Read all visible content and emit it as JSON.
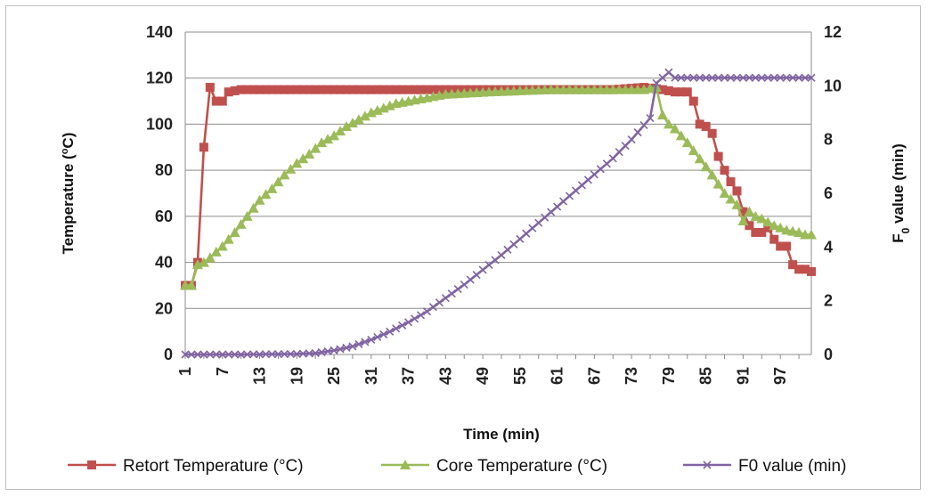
{
  "chart_data": {
    "type": "line",
    "xlabel": "Time (min)",
    "ylabel": "Temperature (ºC)",
    "y2label": "F0 value (min)",
    "x_ticks": [
      "1",
      "7",
      "13",
      "19",
      "25",
      "31",
      "37",
      "43",
      "49",
      "55",
      "61",
      "67",
      "73",
      "79",
      "85",
      "91",
      "97"
    ],
    "xlim": [
      1,
      102
    ],
    "ylim": [
      0,
      140
    ],
    "y_ticks": [
      "0",
      "20",
      "40",
      "60",
      "80",
      "100",
      "120",
      "140"
    ],
    "y2lim": [
      0,
      12
    ],
    "y2_ticks": [
      "0",
      "2",
      "4",
      "6",
      "8",
      "10",
      "12"
    ],
    "grid": true,
    "legend_position": "bottom",
    "series": [
      {
        "name": "Retort Temperature (°C)",
        "axis": "left",
        "color": "#C0504D",
        "marker": "square",
        "points": [
          [
            1,
            30
          ],
          [
            2,
            30
          ],
          [
            3,
            40
          ],
          [
            4,
            90
          ],
          [
            5,
            116
          ],
          [
            6,
            110
          ],
          [
            7,
            110
          ],
          [
            8,
            114
          ],
          [
            10,
            115
          ],
          [
            12,
            115
          ],
          [
            14,
            115
          ],
          [
            20,
            115
          ],
          [
            30,
            115
          ],
          [
            40,
            115
          ],
          [
            50,
            115
          ],
          [
            60,
            115
          ],
          [
            70,
            115
          ],
          [
            75,
            116
          ],
          [
            78,
            115
          ],
          [
            80,
            114
          ],
          [
            82,
            114
          ],
          [
            83,
            110
          ],
          [
            84,
            100
          ],
          [
            85,
            99
          ],
          [
            86,
            96
          ],
          [
            87,
            86
          ],
          [
            88,
            80
          ],
          [
            89,
            75
          ],
          [
            90,
            71
          ],
          [
            91,
            62
          ],
          [
            92,
            56
          ],
          [
            93,
            53
          ],
          [
            94,
            53
          ],
          [
            95,
            55
          ],
          [
            96,
            50
          ],
          [
            97,
            47
          ],
          [
            98,
            47
          ],
          [
            99,
            39
          ],
          [
            100,
            37
          ],
          [
            101,
            37
          ],
          [
            102,
            36
          ]
        ]
      },
      {
        "name": "Core Temperature (°C)",
        "axis": "left",
        "color": "#9BBB59",
        "marker": "triangle",
        "points": [
          [
            1,
            30
          ],
          [
            2,
            30
          ],
          [
            3,
            39
          ],
          [
            4,
            40
          ],
          [
            5,
            42
          ],
          [
            7,
            47
          ],
          [
            9,
            53
          ],
          [
            11,
            60
          ],
          [
            13,
            67
          ],
          [
            15,
            72
          ],
          [
            17,
            78
          ],
          [
            19,
            83
          ],
          [
            21,
            87
          ],
          [
            23,
            92
          ],
          [
            25,
            95
          ],
          [
            27,
            99
          ],
          [
            29,
            102
          ],
          [
            31,
            105
          ],
          [
            33,
            107
          ],
          [
            35,
            109
          ],
          [
            37,
            110
          ],
          [
            39,
            111
          ],
          [
            41,
            112
          ],
          [
            43,
            113
          ],
          [
            50,
            114
          ],
          [
            60,
            115
          ],
          [
            70,
            115
          ],
          [
            75,
            115
          ],
          [
            77,
            116
          ],
          [
            78,
            104
          ],
          [
            79,
            100
          ],
          [
            80,
            98
          ],
          [
            82,
            92
          ],
          [
            84,
            85
          ],
          [
            86,
            78
          ],
          [
            88,
            70
          ],
          [
            90,
            65
          ],
          [
            91,
            58
          ],
          [
            92,
            62
          ],
          [
            93,
            60
          ],
          [
            94,
            59
          ],
          [
            96,
            56
          ],
          [
            98,
            54
          ],
          [
            100,
            53
          ],
          [
            101,
            52
          ],
          [
            102,
            52
          ]
        ]
      },
      {
        "name": "F0 value (min)",
        "axis": "right",
        "color": "#8064A2",
        "marker": "x",
        "points": [
          [
            1,
            0
          ],
          [
            10,
            0
          ],
          [
            19,
            0.02
          ],
          [
            22,
            0.05
          ],
          [
            25,
            0.15
          ],
          [
            28,
            0.3
          ],
          [
            31,
            0.55
          ],
          [
            34,
            0.85
          ],
          [
            37,
            1.2
          ],
          [
            40,
            1.6
          ],
          [
            43,
            2.1
          ],
          [
            46,
            2.6
          ],
          [
            49,
            3.15
          ],
          [
            52,
            3.7
          ],
          [
            55,
            4.3
          ],
          [
            58,
            4.9
          ],
          [
            61,
            5.5
          ],
          [
            64,
            6.1
          ],
          [
            67,
            6.7
          ],
          [
            70,
            7.3
          ],
          [
            73,
            8
          ],
          [
            76,
            8.8
          ],
          [
            77,
            10.1
          ],
          [
            78,
            10.3
          ],
          [
            79,
            10.5
          ],
          [
            80,
            10.3
          ],
          [
            85,
            10.3
          ],
          [
            90,
            10.3
          ],
          [
            95,
            10.3
          ],
          [
            100,
            10.3
          ],
          [
            102,
            10.3
          ]
        ]
      }
    ]
  }
}
